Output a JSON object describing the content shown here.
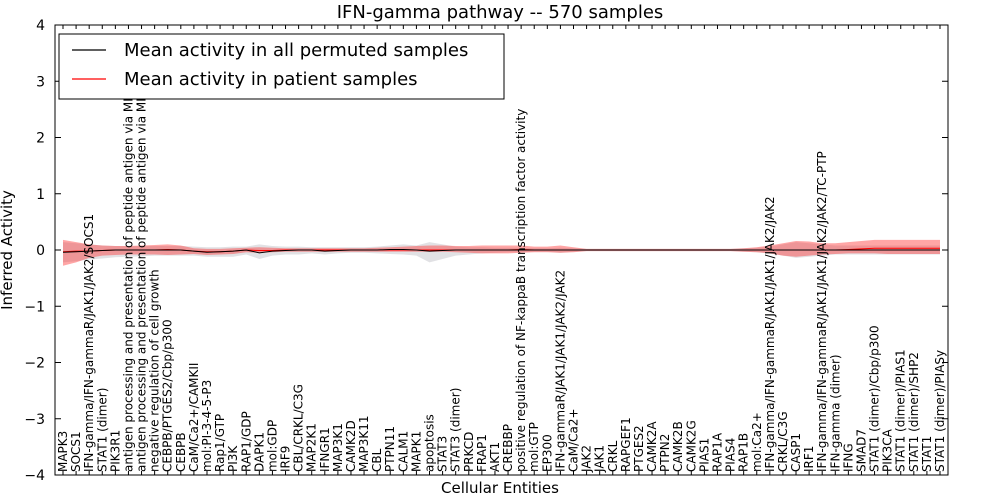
{
  "chart_data": {
    "type": "line",
    "title": "IFN-gamma pathway -- 570 samples",
    "xlabel": "Cellular Entities",
    "ylabel": "Inferred Activity",
    "ylim": [
      -4,
      4
    ],
    "yticks": [
      -4,
      -3,
      -2,
      -1,
      0,
      1,
      2,
      3,
      4
    ],
    "legend": {
      "placement": "top-left",
      "entries": [
        {
          "name": "Mean activity in all permuted samples",
          "color": "#000000"
        },
        {
          "name": "Mean activity in patient samples",
          "color": "#ff0000"
        }
      ]
    },
    "categories": [
      "MAPK3",
      "SOCS1",
      "IFN-gamma/IFN-gammaR/JAK1/JAK2/SOCS1",
      "STAT1 (dimer)",
      "PIK3R1",
      "antigen processing and presentation of peptide antigen via MHC class I",
      "antigen processing and presentation of peptide antigen via MHC class II",
      "negative regulation of cell growth",
      "CEBPB/PTGES2/Cbp/p300",
      "CEBPB",
      "CaM/Ca2+/CAMKII",
      "mol:PI-3-4-5-P3",
      "Rap1/GTP",
      "PI3K",
      "RAP1/GDP",
      "DAPK1",
      "mol:GDP",
      "IRF9",
      "CBL/CRKL/C3G",
      "MAP2K1",
      "IFNGR1",
      "MAP3K1",
      "CAMK2D",
      "MAP3K11",
      "CBL",
      "PTPN11",
      "CALM1",
      "MAPK1",
      "apoptosis",
      "STAT3",
      "STAT3 (dimer)",
      "PRKCD",
      "FRAP1",
      "AKT1",
      "CREBBP",
      "positive regulation of NF-kappaB transcription factor activity",
      "mol:GTP",
      "EP300",
      "IFN-gammaR/JAK1/JAK1/JAK2/JAK2",
      "CaM/Ca2+",
      "JAK2",
      "JAK1",
      "CRKL",
      "RAPGEF1",
      "PTGES2",
      "CAMK2A",
      "PTPN2",
      "CAMK2B",
      "CAMK2G",
      "PIAS1",
      "RAP1A",
      "PIAS4",
      "RAP1B",
      "mol:Ca2+",
      "IFN-gamma/IFN-gammaR/JAK1/JAK1/JAK2/JAK2",
      "CRKL/C3G",
      "CASP1",
      "IRF1",
      "IFN-gamma/IFN-gammaR/JAK1/JAK1/JAK2/JAK2/TC-PTP",
      "IFN-gamma (dimer)",
      "IFNG",
      "SMAD7",
      "STAT1 (dimer)/Cbp/p300",
      "PIK3CA",
      "STAT1 (dimer)/PIAS1",
      "STAT1 (dimer)/SHP2",
      "STAT1",
      "STAT1 (dimer)/PIASy"
    ],
    "series": [
      {
        "name": "Mean activity in all permuted samples",
        "color": "#000000",
        "values": [
          -0.04,
          -0.03,
          -0.02,
          -0.01,
          0.0,
          0.0,
          0.0,
          0.0,
          0.0,
          0.0,
          -0.02,
          -0.04,
          -0.03,
          -0.02,
          0.0,
          -0.05,
          -0.02,
          -0.01,
          0.0,
          0.0,
          -0.02,
          -0.01,
          0.0,
          0.0,
          0.0,
          0.01,
          0.01,
          0.0,
          -0.02,
          -0.01,
          0.0,
          0.0,
          0.0,
          0.0,
          0.0,
          0.0,
          0.0,
          0.0,
          0.0,
          0.0,
          0.0,
          0.0,
          0.0,
          0.0,
          0.0,
          0.0,
          0.0,
          0.0,
          0.0,
          0.0,
          0.0,
          0.0,
          0.0,
          0.0,
          0.0,
          0.0,
          0.0,
          0.0,
          0.0,
          0.0,
          0.0,
          0.0,
          0.0,
          0.0,
          0.0,
          0.0,
          0.0,
          0.0
        ],
        "band_low": [
          -0.22,
          -0.2,
          -0.17,
          -0.15,
          -0.13,
          -0.12,
          -0.11,
          -0.1,
          -0.1,
          -0.1,
          -0.1,
          -0.12,
          -0.12,
          -0.12,
          -0.08,
          -0.16,
          -0.1,
          -0.08,
          -0.08,
          -0.06,
          -0.08,
          -0.06,
          -0.05,
          -0.05,
          -0.06,
          -0.07,
          -0.08,
          -0.1,
          -0.22,
          -0.16,
          -0.1,
          -0.08,
          -0.06,
          -0.05,
          -0.04,
          -0.04,
          -0.03,
          -0.03,
          -0.05,
          -0.03,
          -0.02,
          -0.02,
          -0.02,
          -0.02,
          -0.02,
          -0.02,
          -0.02,
          -0.02,
          -0.02,
          -0.02,
          -0.02,
          -0.02,
          -0.03,
          -0.04,
          -0.06,
          -0.1,
          -0.14,
          -0.12,
          -0.1,
          -0.08,
          -0.08,
          -0.08,
          -0.08,
          -0.08,
          -0.08,
          -0.08,
          -0.08,
          -0.08
        ],
        "band_high": [
          0.14,
          0.12,
          0.1,
          0.08,
          0.07,
          0.07,
          0.07,
          0.07,
          0.07,
          0.07,
          0.06,
          0.05,
          0.05,
          0.06,
          0.06,
          0.1,
          0.07,
          0.06,
          0.06,
          0.05,
          0.05,
          0.05,
          0.05,
          0.05,
          0.06,
          0.08,
          0.1,
          0.08,
          0.14,
          0.1,
          0.06,
          0.05,
          0.05,
          0.04,
          0.04,
          0.04,
          0.03,
          0.03,
          0.04,
          0.03,
          0.02,
          0.02,
          0.02,
          0.02,
          0.02,
          0.02,
          0.02,
          0.02,
          0.02,
          0.02,
          0.02,
          0.02,
          0.03,
          0.04,
          0.06,
          0.1,
          0.14,
          0.12,
          0.1,
          0.08,
          0.08,
          0.08,
          0.08,
          0.08,
          0.08,
          0.08,
          0.08,
          0.08
        ]
      },
      {
        "name": "Mean activity in patient samples",
        "color": "#ff0000",
        "values": [
          -0.03,
          -0.02,
          -0.02,
          -0.01,
          0.0,
          0.0,
          0.0,
          0.0,
          0.01,
          0.0,
          -0.02,
          -0.03,
          -0.03,
          -0.02,
          0.0,
          -0.01,
          -0.01,
          0.0,
          0.0,
          0.0,
          0.0,
          0.0,
          0.0,
          0.0,
          0.0,
          0.0,
          0.0,
          0.0,
          0.0,
          0.0,
          0.0,
          0.0,
          0.0,
          0.0,
          0.0,
          0.01,
          0.0,
          0.0,
          0.0,
          0.0,
          0.0,
          0.0,
          0.0,
          0.0,
          0.0,
          0.0,
          0.0,
          0.0,
          0.0,
          0.0,
          0.0,
          0.0,
          0.0,
          0.0,
          0.0,
          0.0,
          0.0,
          0.0,
          0.0,
          0.0,
          0.01,
          0.02,
          0.03,
          0.03,
          0.03,
          0.03,
          0.03,
          0.03
        ],
        "band_low": [
          -0.28,
          -0.22,
          -0.14,
          -0.1,
          -0.09,
          -0.08,
          -0.08,
          -0.08,
          -0.09,
          -0.08,
          -0.07,
          -0.09,
          -0.08,
          -0.07,
          -0.04,
          -0.05,
          -0.04,
          -0.03,
          -0.03,
          -0.03,
          -0.03,
          -0.03,
          -0.03,
          -0.03,
          -0.03,
          -0.03,
          -0.03,
          -0.03,
          -0.03,
          -0.03,
          -0.04,
          -0.05,
          -0.06,
          -0.06,
          -0.06,
          -0.05,
          -0.04,
          -0.04,
          -0.05,
          -0.04,
          -0.02,
          -0.02,
          -0.02,
          -0.02,
          -0.02,
          -0.02,
          -0.02,
          -0.02,
          -0.02,
          -0.02,
          -0.02,
          -0.02,
          -0.03,
          -0.04,
          -0.06,
          -0.1,
          -0.12,
          -0.1,
          -0.08,
          -0.07,
          -0.06,
          -0.06,
          -0.06,
          -0.07,
          -0.07,
          -0.07,
          -0.07,
          -0.07
        ],
        "band_high": [
          0.18,
          0.14,
          0.1,
          0.08,
          0.07,
          0.07,
          0.08,
          0.09,
          0.1,
          0.08,
          0.03,
          0.02,
          0.02,
          0.03,
          0.04,
          0.05,
          0.04,
          0.03,
          0.03,
          0.03,
          0.03,
          0.03,
          0.03,
          0.03,
          0.04,
          0.05,
          0.06,
          0.07,
          0.08,
          0.08,
          0.07,
          0.07,
          0.08,
          0.08,
          0.08,
          0.08,
          0.06,
          0.06,
          0.08,
          0.05,
          0.02,
          0.02,
          0.02,
          0.02,
          0.02,
          0.02,
          0.02,
          0.02,
          0.02,
          0.02,
          0.02,
          0.02,
          0.03,
          0.05,
          0.08,
          0.12,
          0.16,
          0.15,
          0.12,
          0.12,
          0.14,
          0.16,
          0.18,
          0.18,
          0.18,
          0.18,
          0.18,
          0.18
        ]
      }
    ]
  }
}
